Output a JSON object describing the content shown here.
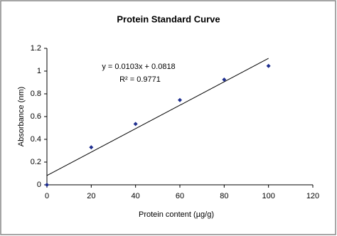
{
  "chart_data": {
    "type": "scatter",
    "title": "Protein Standard Curve",
    "x_label": "Protein content (µg/g)",
    "y_label": "Absorbance (nm)",
    "x": [
      0,
      20,
      40,
      60,
      80,
      100
    ],
    "values": [
      0,
      0.33,
      0.535,
      0.745,
      0.925,
      1.045
    ],
    "color": "#1f2f8f",
    "xlim": [
      0,
      120
    ],
    "xticks": [
      0,
      20,
      40,
      60,
      80,
      100,
      120
    ],
    "ylim": [
      0,
      1.2
    ],
    "yticks": [
      0,
      0.2,
      0.4,
      0.6,
      0.8,
      1,
      1.2
    ],
    "trendline": {
      "slope": 0.0103,
      "intercept": 0.0818,
      "color": "#000000"
    },
    "annotations": [
      "y = 0.0103x + 0.0818",
      "R² = 0.9771"
    ],
    "grid": false
  }
}
